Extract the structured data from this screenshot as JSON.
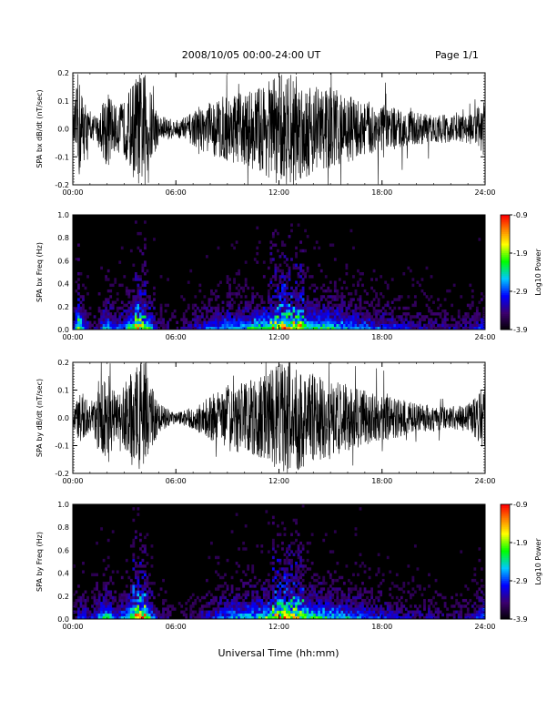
{
  "header": {
    "title": "2008/10/05  00:00-24:00 UT",
    "page": "Page 1/1"
  },
  "footer": {
    "xlabel": "Universal Time (hh:mm)"
  },
  "chart_data": [
    {
      "type": "line",
      "ylabel": "SPA bx dB/dt (nT/sec)",
      "xlim": [
        0,
        24
      ],
      "ylim": [
        -0.2,
        0.2
      ],
      "yticks": [
        "0.2",
        "0.1",
        "0.0",
        "-0.1",
        "-0.2"
      ],
      "xticks": [
        "00:00",
        "06:00",
        "12:00",
        "18:00",
        "24:00"
      ],
      "envelope": [
        {
          "x": 0,
          "amp": 0.03
        },
        {
          "x": 0.3,
          "amp": 0.2
        },
        {
          "x": 1,
          "amp": 0.04
        },
        {
          "x": 1.5,
          "amp": 0.05
        },
        {
          "x": 2,
          "amp": 0.15
        },
        {
          "x": 2.5,
          "amp": 0.08
        },
        {
          "x": 3,
          "amp": 0.1
        },
        {
          "x": 3.7,
          "amp": 0.2
        },
        {
          "x": 4.2,
          "amp": 0.2
        },
        {
          "x": 5,
          "amp": 0.05
        },
        {
          "x": 6,
          "amp": 0.03
        },
        {
          "x": 7,
          "amp": 0.06
        },
        {
          "x": 8,
          "amp": 0.1
        },
        {
          "x": 9,
          "amp": 0.12
        },
        {
          "x": 10,
          "amp": 0.13
        },
        {
          "x": 11,
          "amp": 0.16
        },
        {
          "x": 12,
          "amp": 0.2
        },
        {
          "x": 13,
          "amp": 0.2
        },
        {
          "x": 14,
          "amp": 0.16
        },
        {
          "x": 15,
          "amp": 0.15
        },
        {
          "x": 16,
          "amp": 0.12
        },
        {
          "x": 17,
          "amp": 0.1
        },
        {
          "x": 18,
          "amp": 0.09
        },
        {
          "x": 19,
          "amp": 0.07
        },
        {
          "x": 20,
          "amp": 0.06
        },
        {
          "x": 21,
          "amp": 0.05
        },
        {
          "x": 22,
          "amp": 0.05
        },
        {
          "x": 23,
          "amp": 0.05
        },
        {
          "x": 24,
          "amp": 0.1
        }
      ]
    },
    {
      "type": "heatmap",
      "ylabel": "SPA bx Freq (Hz)",
      "xlim": [
        0,
        24
      ],
      "ylim": [
        0,
        1.0
      ],
      "yticks": [
        "1.0",
        "0.8",
        "0.6",
        "0.4",
        "0.2",
        "0.0"
      ],
      "xticks": [
        "00:00",
        "06:00",
        "12:00",
        "18:00",
        "24:00"
      ],
      "colorbar": {
        "label": "Log10 Power",
        "min": -3.9,
        "max": -0.9,
        "ticks": [
          "-0.9",
          "-1.9",
          "-2.9",
          "-3.9"
        ]
      }
    },
    {
      "type": "line",
      "ylabel": "SPA by dB/dt (nT/sec)",
      "xlim": [
        0,
        24
      ],
      "ylim": [
        -0.2,
        0.2
      ],
      "yticks": [
        "0.2",
        "0.1",
        "0.0",
        "-0.1",
        "-0.2"
      ],
      "xticks": [
        "00:00",
        "06:00",
        "12:00",
        "18:00",
        "24:00"
      ],
      "envelope": [
        {
          "x": 0,
          "amp": 0.03
        },
        {
          "x": 0.5,
          "amp": 0.1
        },
        {
          "x": 1,
          "amp": 0.05
        },
        {
          "x": 2,
          "amp": 0.18
        },
        {
          "x": 2.5,
          "amp": 0.08
        },
        {
          "x": 3,
          "amp": 0.12
        },
        {
          "x": 3.7,
          "amp": 0.2
        },
        {
          "x": 4.2,
          "amp": 0.2
        },
        {
          "x": 5,
          "amp": 0.05
        },
        {
          "x": 6,
          "amp": 0.02
        },
        {
          "x": 7,
          "amp": 0.04
        },
        {
          "x": 8,
          "amp": 0.08
        },
        {
          "x": 9,
          "amp": 0.12
        },
        {
          "x": 10,
          "amp": 0.13
        },
        {
          "x": 11,
          "amp": 0.15
        },
        {
          "x": 12,
          "amp": 0.2
        },
        {
          "x": 13,
          "amp": 0.2
        },
        {
          "x": 14,
          "amp": 0.16
        },
        {
          "x": 15,
          "amp": 0.14
        },
        {
          "x": 16,
          "amp": 0.12
        },
        {
          "x": 17,
          "amp": 0.1
        },
        {
          "x": 18,
          "amp": 0.08
        },
        {
          "x": 19,
          "amp": 0.07
        },
        {
          "x": 20,
          "amp": 0.05
        },
        {
          "x": 21,
          "amp": 0.05
        },
        {
          "x": 22,
          "amp": 0.04
        },
        {
          "x": 23,
          "amp": 0.05
        },
        {
          "x": 24,
          "amp": 0.12
        }
      ]
    },
    {
      "type": "heatmap",
      "ylabel": "SPA by Freq (Hz)",
      "xlim": [
        0,
        24
      ],
      "ylim": [
        0,
        1.0
      ],
      "yticks": [
        "1.0",
        "0.8",
        "0.6",
        "0.4",
        "0.2",
        "0.0"
      ],
      "xticks": [
        "00:00",
        "06:00",
        "12:00",
        "18:00",
        "24:00"
      ],
      "colorbar": {
        "label": "Log10 Power",
        "min": -3.9,
        "max": -0.9,
        "ticks": [
          "-0.9",
          "-1.9",
          "-2.9",
          "-3.9"
        ]
      }
    }
  ]
}
